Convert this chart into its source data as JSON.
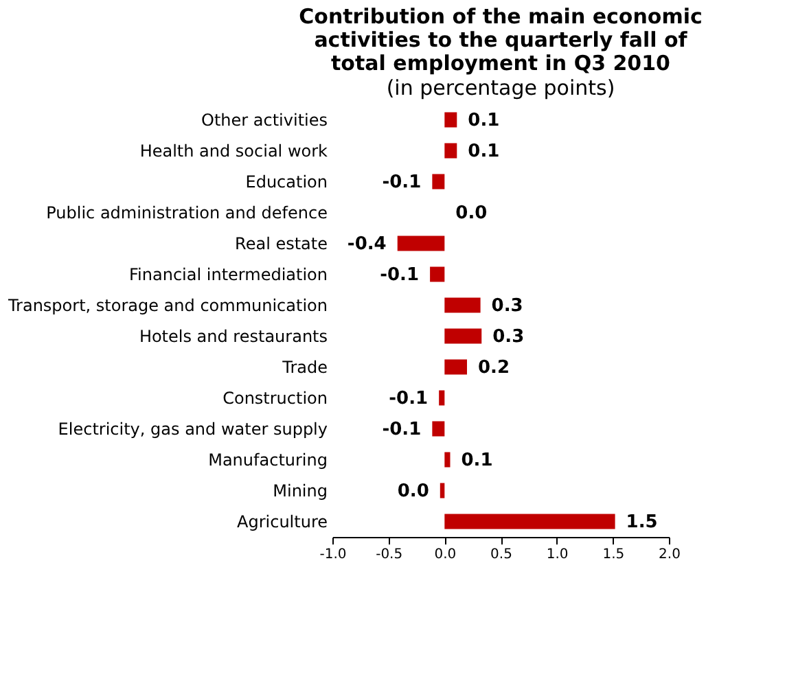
{
  "chart_data": {
    "type": "bar",
    "orientation": "horizontal",
    "title": "Contribution of the main economic activities to the quarterly fall of total employment in Q3 2010",
    "subtitle": "(in percentage points)",
    "categories": [
      "Other activities",
      "Health and social work",
      "Education",
      "Public administration and defence",
      "Real estate",
      "Financial intermediation",
      "Transport, storage and communication",
      "Hotels and restaurants",
      "Trade",
      "Construction",
      "Electricity, gas and water supply",
      "Manufacturing",
      "Mining",
      "Agriculture"
    ],
    "values": [
      0.11,
      0.11,
      -0.11,
      0.0,
      -0.42,
      -0.13,
      0.32,
      0.33,
      0.2,
      -0.05,
      -0.11,
      0.05,
      -0.04,
      1.52
    ],
    "value_labels": [
      "0.1",
      "0.1",
      "-0.1",
      "0.0",
      "-0.4",
      "-0.1",
      "0.3",
      "0.3",
      "0.2",
      "-0.1",
      "-0.1",
      "0.1",
      "0.0",
      "1.5"
    ],
    "color": "#c00000",
    "xlim": [
      -1.0,
      2.0
    ],
    "xticks": [
      {
        "value": -1.0,
        "label": "-1.0"
      },
      {
        "value": -0.5,
        "label": "-0.5"
      },
      {
        "value": 0.0,
        "label": "0.0"
      },
      {
        "value": 0.5,
        "label": "0.5"
      },
      {
        "value": 1.0,
        "label": "1.0"
      },
      {
        "value": 1.5,
        "label": "1.5"
      },
      {
        "value": 2.0,
        "label": "2.0"
      }
    ],
    "grid": false
  }
}
